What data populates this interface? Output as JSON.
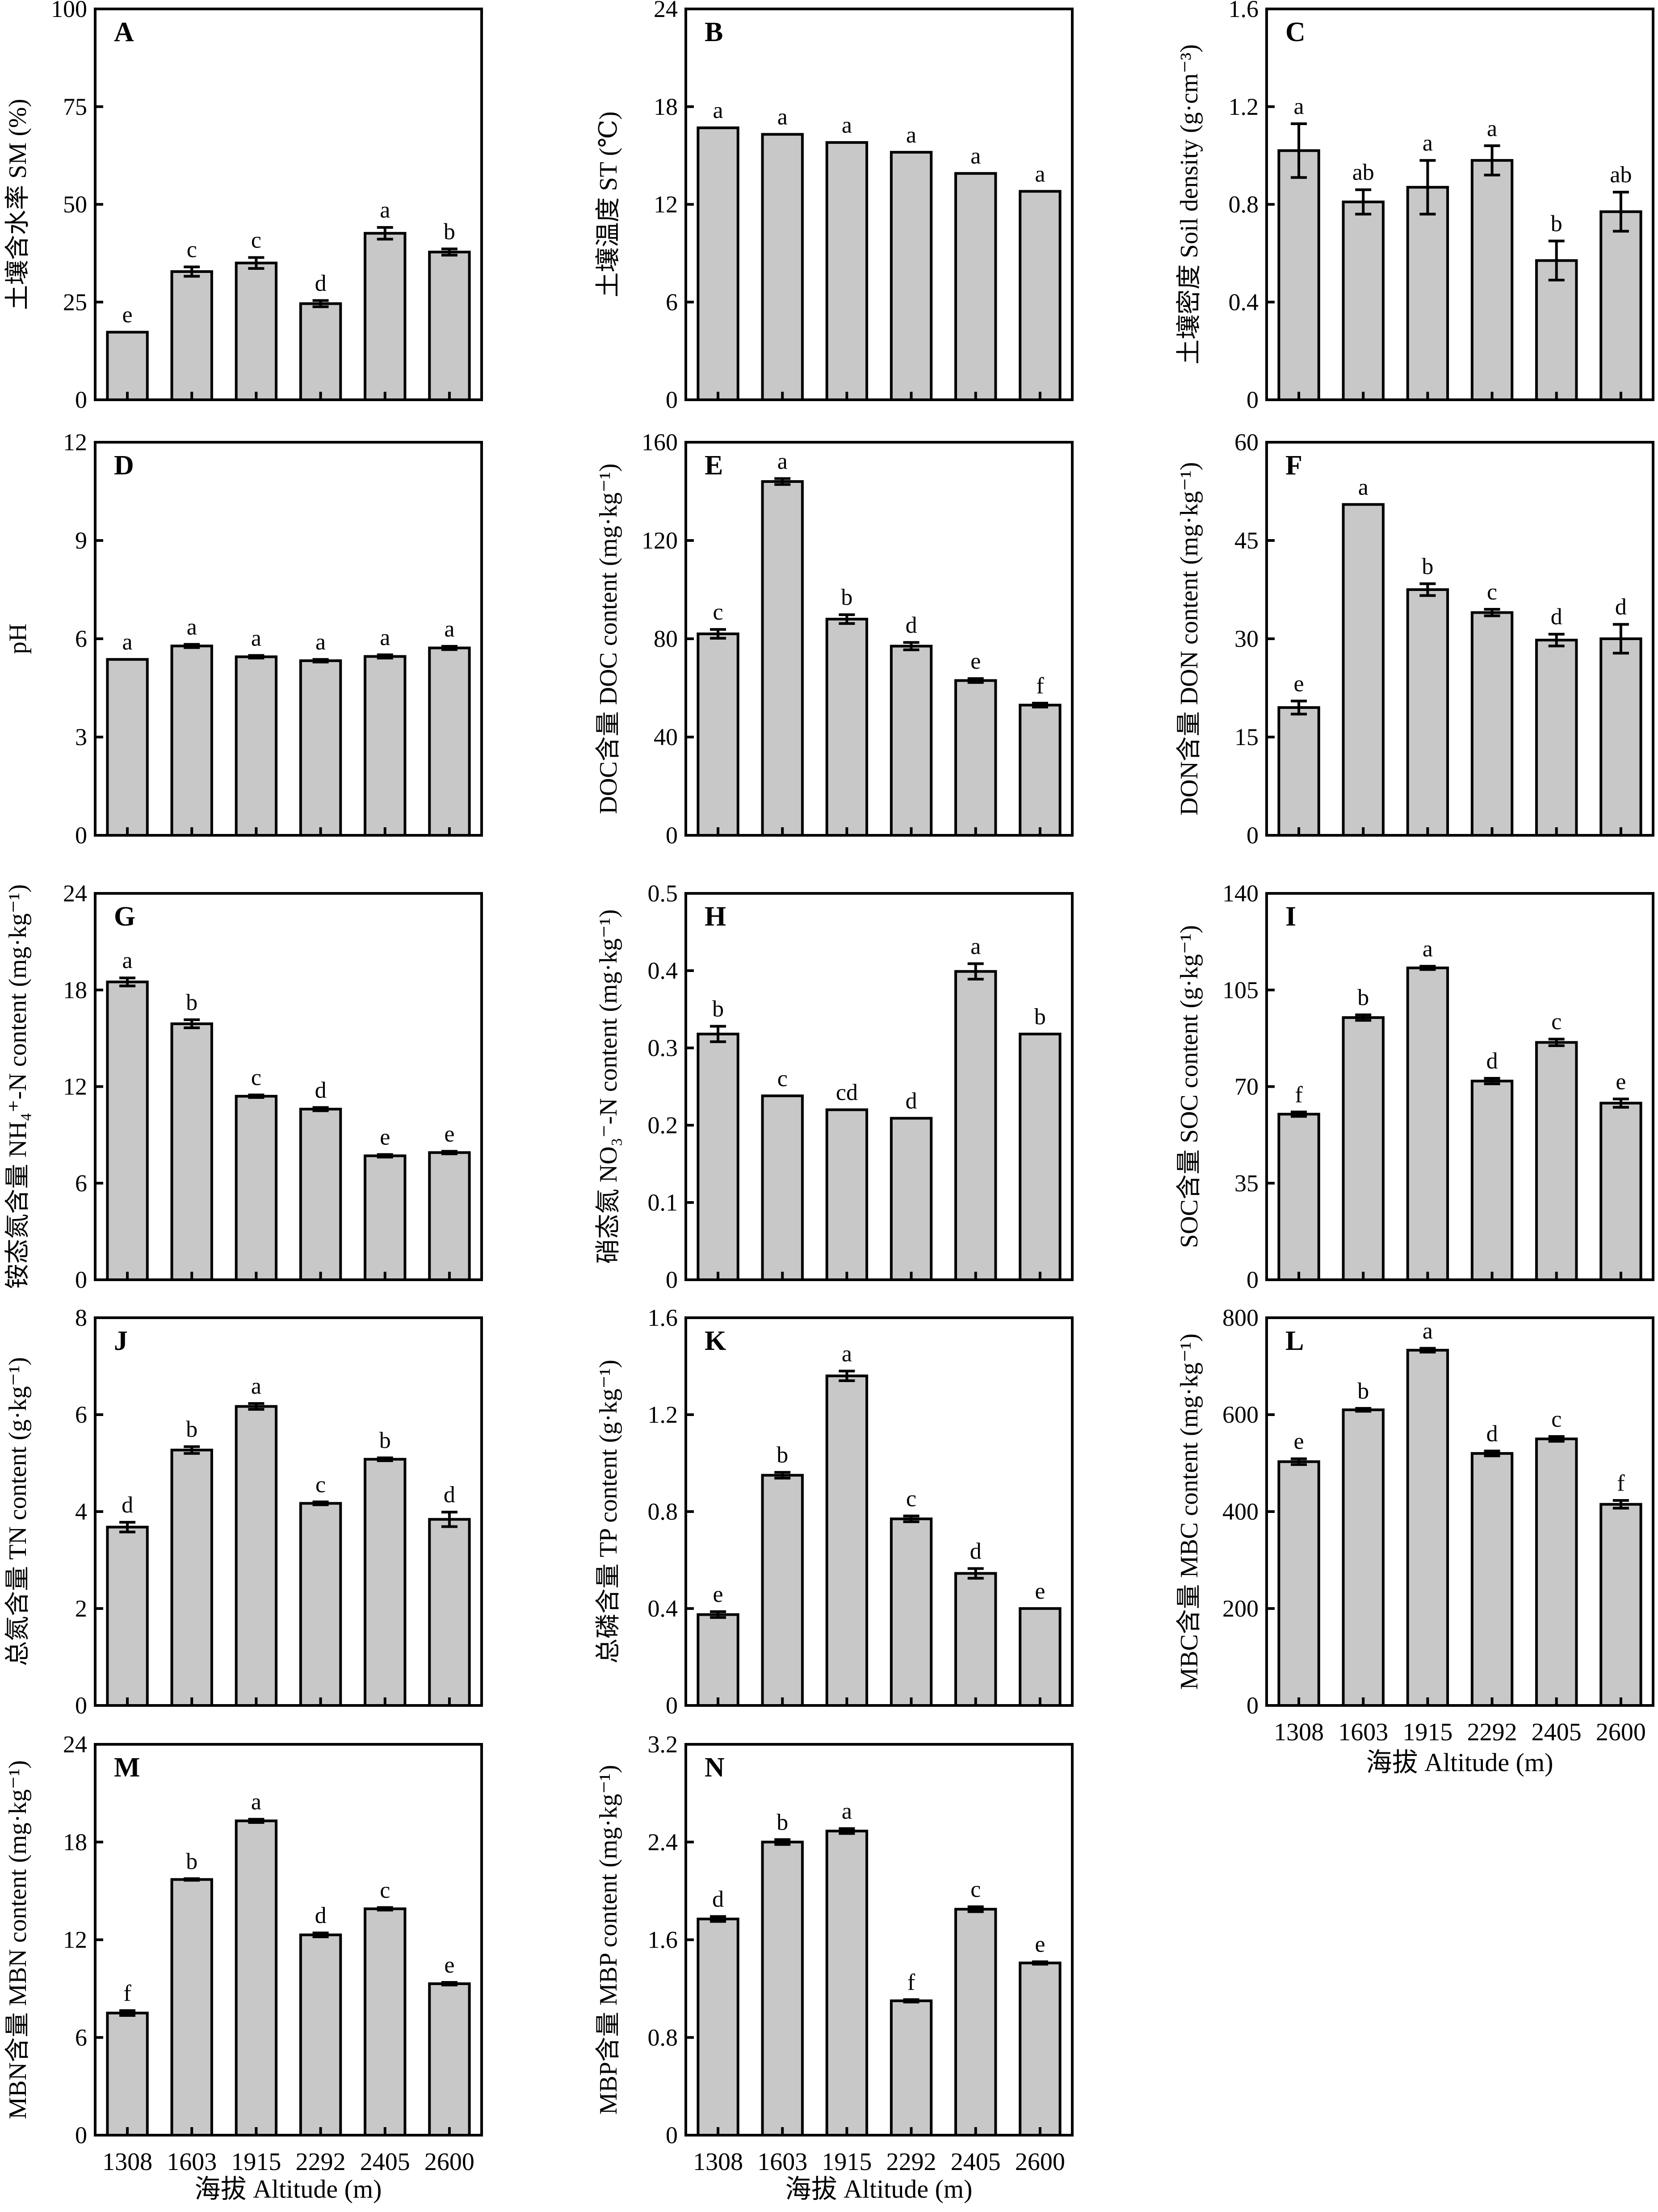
{
  "x_label": "海拔 Altitude (m)",
  "bar_color": "#c8c8c8",
  "chart_data": [
    {
      "panel": "A",
      "type": "bar",
      "ylabel": "土壤含水率 SM (%)",
      "categories": [
        "1308",
        "1603",
        "1915",
        "2292",
        "2405",
        "2600"
      ],
      "values": [
        17.3,
        32.8,
        35.0,
        24.6,
        42.6,
        37.8
      ],
      "errors": [
        0,
        1.2,
        1.4,
        0.8,
        1.5,
        0.8
      ],
      "letters": [
        "e",
        "c",
        "c",
        "d",
        "a",
        "b"
      ],
      "ylim": [
        0,
        100
      ],
      "ticks": [
        0,
        25,
        50,
        75,
        100
      ],
      "tick_labels": [
        "0",
        "25",
        "50",
        "75",
        "100"
      ]
    },
    {
      "panel": "B",
      "type": "bar",
      "ylabel": "土壤温度 ST (℃)",
      "categories": [
        "1308",
        "1603",
        "1915",
        "2292",
        "2405",
        "2600"
      ],
      "values": [
        16.7,
        16.3,
        15.8,
        15.2,
        13.9,
        12.8
      ],
      "errors": [
        0,
        0,
        0,
        0,
        0,
        0
      ],
      "letters": [
        "a",
        "a",
        "a",
        "a",
        "a",
        "a"
      ],
      "ylim": [
        0,
        24
      ],
      "ticks": [
        0,
        6,
        12,
        18,
        24
      ],
      "tick_labels": [
        "0",
        "6",
        "12",
        "18",
        "24"
      ]
    },
    {
      "panel": "C",
      "type": "bar",
      "ylabel": "土壤密度 Soil density (g·cm⁻³)",
      "categories": [
        "1308",
        "1603",
        "1915",
        "2292",
        "2405",
        "2600"
      ],
      "values": [
        1.02,
        0.81,
        0.87,
        0.98,
        0.57,
        0.77
      ],
      "errors": [
        0.11,
        0.05,
        0.11,
        0.06,
        0.08,
        0.08
      ],
      "letters": [
        "a",
        "ab",
        "a",
        "a",
        "b",
        "ab"
      ],
      "ylim": [
        0,
        1.6
      ],
      "ticks": [
        0,
        0.4,
        0.8,
        1.2,
        1.6
      ],
      "tick_labels": [
        "0",
        "0.4",
        "0.8",
        "1.2",
        "1.6"
      ]
    },
    {
      "panel": "D",
      "type": "bar",
      "ylabel": "pH",
      "categories": [
        "1308",
        "1603",
        "1915",
        "2292",
        "2405",
        "2600"
      ],
      "values": [
        5.37,
        5.78,
        5.45,
        5.33,
        5.46,
        5.72
      ],
      "errors": [
        0,
        0.05,
        0.04,
        0.04,
        0.05,
        0.05
      ],
      "letters": [
        "a",
        "a",
        "a",
        "a",
        "a",
        "a"
      ],
      "ylim": [
        0,
        12
      ],
      "ticks": [
        0,
        3,
        6,
        9,
        12
      ],
      "tick_labels": [
        "0",
        "3",
        "6",
        "9",
        "12"
      ]
    },
    {
      "panel": "E",
      "type": "bar",
      "ylabel": "DOC含量 DOC content (mg·kg⁻¹)",
      "categories": [
        "1308",
        "1603",
        "1915",
        "2292",
        "2405",
        "2600"
      ],
      "values": [
        82,
        144,
        88,
        77,
        63,
        53
      ],
      "errors": [
        1.8,
        1.2,
        1.8,
        1.5,
        0.8,
        0.8
      ],
      "letters": [
        "c",
        "a",
        "b",
        "d",
        "e",
        "f"
      ],
      "ylim": [
        0,
        160
      ],
      "ticks": [
        0,
        40,
        80,
        120,
        160
      ],
      "tick_labels": [
        "0",
        "40",
        "80",
        "120",
        "160"
      ]
    },
    {
      "panel": "F",
      "type": "bar",
      "ylabel": "DON含量 DON content (mg·kg⁻¹)",
      "categories": [
        "1308",
        "1603",
        "1915",
        "2292",
        "2405",
        "2600"
      ],
      "values": [
        19.5,
        50.5,
        37.5,
        34.0,
        29.8,
        30.0
      ],
      "errors": [
        1.0,
        0,
        0.9,
        0.5,
        0.9,
        2.2
      ],
      "letters": [
        "e",
        "a",
        "b",
        "c",
        "d",
        "d"
      ],
      "ylim": [
        0,
        60
      ],
      "ticks": [
        0,
        15,
        30,
        45,
        60
      ],
      "tick_labels": [
        "0",
        "15",
        "30",
        "45",
        "60"
      ]
    },
    {
      "panel": "G",
      "type": "bar",
      "ylabel": "铵态氮含量 NH₄⁺-N content (mg·kg⁻¹)",
      "categories": [
        "1308",
        "1603",
        "1915",
        "2292",
        "2405",
        "2600"
      ],
      "values": [
        18.5,
        15.9,
        11.4,
        10.6,
        7.7,
        7.9
      ],
      "errors": [
        0.25,
        0.25,
        0.08,
        0.1,
        0.08,
        0.08
      ],
      "letters": [
        "a",
        "b",
        "c",
        "d",
        "e",
        "e"
      ],
      "ylim": [
        0,
        24
      ],
      "ticks": [
        0,
        6,
        12,
        18,
        24
      ],
      "tick_labels": [
        "0",
        "6",
        "12",
        "18",
        "24"
      ]
    },
    {
      "panel": "H",
      "type": "bar",
      "ylabel": "硝态氮 NO₃⁻-N content (mg·kg⁻¹)",
      "categories": [
        "1308",
        "1603",
        "1915",
        "2292",
        "2405",
        "2600"
      ],
      "values": [
        0.318,
        0.238,
        0.22,
        0.209,
        0.399,
        0.318
      ],
      "errors": [
        0.01,
        0,
        0,
        0,
        0.01,
        0
      ],
      "letters": [
        "b",
        "c",
        "cd",
        "d",
        "a",
        "b"
      ],
      "ylim": [
        0,
        0.5
      ],
      "ticks": [
        0,
        0.1,
        0.2,
        0.3,
        0.4,
        0.5
      ],
      "tick_labels": [
        "0",
        "0.1",
        "0.2",
        "0.3",
        "0.4",
        "0.5"
      ]
    },
    {
      "panel": "I",
      "type": "bar",
      "ylabel": "SOC含量 SOC content (g·kg⁻¹)",
      "categories": [
        "1308",
        "1603",
        "1915",
        "2292",
        "2405",
        "2600"
      ],
      "values": [
        60,
        95,
        113,
        72,
        86,
        64
      ],
      "errors": [
        0.8,
        1.0,
        0.6,
        1.0,
        1.2,
        1.5
      ],
      "letters": [
        "f",
        "b",
        "a",
        "d",
        "c",
        "e"
      ],
      "ylim": [
        0,
        140
      ],
      "ticks": [
        0,
        35,
        70,
        105,
        140
      ],
      "tick_labels": [
        "0",
        "35",
        "70",
        "105",
        "140"
      ]
    },
    {
      "panel": "J",
      "type": "bar",
      "ylabel": "总氮含量 TN content (g·kg⁻¹)",
      "categories": [
        "1308",
        "1603",
        "1915",
        "2292",
        "2405",
        "2600"
      ],
      "values": [
        3.68,
        5.27,
        6.17,
        4.17,
        5.08,
        3.84
      ],
      "errors": [
        0.1,
        0.07,
        0.06,
        0.03,
        0.03,
        0.15
      ],
      "letters": [
        "d",
        "b",
        "a",
        "c",
        "b",
        "d"
      ],
      "ylim": [
        0,
        8
      ],
      "ticks": [
        0,
        2,
        4,
        6,
        8
      ],
      "tick_labels": [
        "0",
        "2",
        "4",
        "6",
        "8"
      ]
    },
    {
      "panel": "K",
      "type": "bar",
      "ylabel": "总磷含量 TP content (g·kg⁻¹)",
      "categories": [
        "1308",
        "1603",
        "1915",
        "2292",
        "2405",
        "2600"
      ],
      "values": [
        0.375,
        0.95,
        1.36,
        0.77,
        0.545,
        0.4
      ],
      "errors": [
        0.012,
        0.012,
        0.02,
        0.012,
        0.02,
        0
      ],
      "letters": [
        "e",
        "b",
        "a",
        "c",
        "d",
        "e"
      ],
      "ylim": [
        0,
        1.6
      ],
      "ticks": [
        0,
        0.4,
        0.8,
        1.2,
        1.6
      ],
      "tick_labels": [
        "0",
        "0.4",
        "0.8",
        "1.2",
        "1.6"
      ]
    },
    {
      "panel": "L",
      "type": "bar",
      "ylabel": "MBC含量 MBC content (mg·kg⁻¹)",
      "categories": [
        "1308",
        "1603",
        "1915",
        "2292",
        "2405",
        "2600"
      ],
      "values": [
        503,
        610,
        733,
        520,
        550,
        415
      ],
      "errors": [
        6,
        3,
        4,
        5,
        5,
        8
      ],
      "letters": [
        "e",
        "b",
        "a",
        "d",
        "c",
        "f"
      ],
      "ylim": [
        0,
        800
      ],
      "ticks": [
        0,
        200,
        400,
        600,
        800
      ],
      "tick_labels": [
        "0",
        "200",
        "400",
        "600",
        "800"
      ]
    },
    {
      "panel": "M",
      "type": "bar",
      "ylabel": "MBN含量 MBN content (mg·kg⁻¹)",
      "categories": [
        "1308",
        "1603",
        "1915",
        "2292",
        "2405",
        "2600"
      ],
      "values": [
        7.5,
        15.7,
        19.3,
        12.3,
        13.9,
        9.3
      ],
      "errors": [
        0.15,
        0.05,
        0.1,
        0.12,
        0.08,
        0.08
      ],
      "letters": [
        "f",
        "b",
        "a",
        "d",
        "c",
        "e"
      ],
      "ylim": [
        0,
        24
      ],
      "ticks": [
        0,
        6,
        12,
        18,
        24
      ],
      "tick_labels": [
        "0",
        "6",
        "12",
        "18",
        "24"
      ]
    },
    {
      "panel": "N",
      "type": "bar",
      "ylabel": "MBP含量 MBP content (mg·kg⁻¹)",
      "categories": [
        "1308",
        "1603",
        "1915",
        "2292",
        "2405",
        "2600"
      ],
      "values": [
        1.77,
        2.4,
        2.49,
        1.1,
        1.85,
        1.41
      ],
      "errors": [
        0.02,
        0.02,
        0.02,
        0.01,
        0.02,
        0.01
      ],
      "letters": [
        "d",
        "b",
        "a",
        "f",
        "c",
        "e"
      ],
      "ylim": [
        0,
        3.2
      ],
      "ticks": [
        0,
        0.8,
        1.6,
        2.4,
        3.2
      ],
      "tick_labels": [
        "0",
        "0.8",
        "1.6",
        "2.4",
        "3.2"
      ]
    }
  ]
}
